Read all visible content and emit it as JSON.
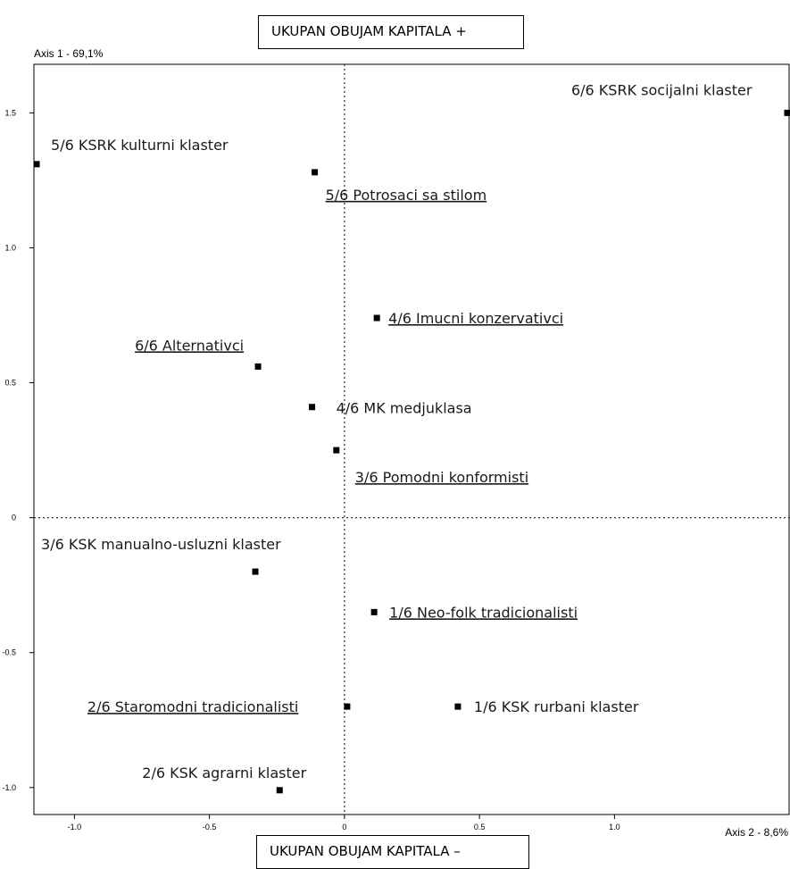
{
  "chart_data": {
    "type": "scatter",
    "title": "",
    "xlabel": "Axis 2 - 8,6%",
    "ylabel": "Axis 1 - 69,1%",
    "xlim": [
      -1.15,
      1.65
    ],
    "ylim": [
      -1.1,
      1.68
    ],
    "x_ticks": [
      -1.0,
      -0.5,
      0,
      0.5,
      1.0
    ],
    "y_ticks": [
      -1.0,
      -0.5,
      0,
      0.5,
      1.0,
      1.5
    ],
    "x_tick_labels": [
      "-1.0",
      "-0.5",
      "0",
      "0.5",
      "1.0"
    ],
    "y_tick_labels": [
      "-1.0",
      "-0.5",
      "0",
      "0.5",
      "1.0",
      "1.5"
    ],
    "reference_lines": "dotted lines at x = 0 and y = 0",
    "grid": false,
    "marker": "black-square",
    "points": [
      {
        "label": "6/6 KSRK socijalni klaster",
        "x": 1.64,
        "y": 1.5,
        "underlined": false
      },
      {
        "label": "5/6 KSRK kulturni klaster",
        "x": -1.14,
        "y": 1.31,
        "underlined": false
      },
      {
        "label": "5/6 Potrosaci sa stilom",
        "x": -0.11,
        "y": 1.28,
        "underlined": true
      },
      {
        "label": "4/6 Imucni konzervativci",
        "x": 0.12,
        "y": 0.74,
        "underlined": true
      },
      {
        "label": "6/6 Alternativci",
        "x": -0.32,
        "y": 0.56,
        "underlined": true
      },
      {
        "label": "4/6 MK medjuklasa",
        "x": -0.12,
        "y": 0.41,
        "underlined": false
      },
      {
        "label": "3/6 Pomodni konformisti",
        "x": -0.03,
        "y": 0.25,
        "underlined": true
      },
      {
        "label": "3/6 KSK manualno-usluzni klaster",
        "x": -0.33,
        "y": -0.2,
        "underlined": false
      },
      {
        "label": "1/6 Neo-folk tradicionalisti",
        "x": 0.11,
        "y": -0.35,
        "underlined": true
      },
      {
        "label": "2/6 Staromodni tradicionalisti",
        "x": 0.01,
        "y": -0.7,
        "underlined": true
      },
      {
        "label": "1/6 KSK rurbani klaster",
        "x": 0.42,
        "y": -0.7,
        "underlined": false
      },
      {
        "label": "2/6 KSK agrarni klaster",
        "x": -0.24,
        "y": -1.01,
        "underlined": false
      }
    ]
  },
  "annotations": {
    "top": "UKUPAN OBUJAM KAPITALA +",
    "bottom": "UKUPAN OBUJAM KAPITALA –"
  }
}
